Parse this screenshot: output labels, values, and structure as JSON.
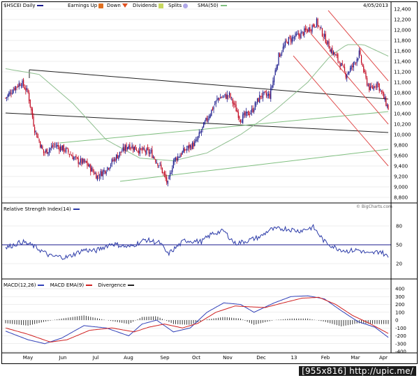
{
  "header": {
    "symbol_label": "$HSCEI Daily",
    "earnings_label": "Earnings Up",
    "down_label": "Down",
    "dividends_label": "Dividends",
    "splits_label": "Splits",
    "sma_label": "SMA(50)",
    "date": "4/05/2013"
  },
  "credit": "© BigCharts.com",
  "rsi_label": "Relative Strength Index(14)",
  "macd_labels": {
    "macd": "MACD(12,26)",
    "ema": "MACD EMA(9)",
    "div": "Divergence"
  },
  "months": [
    "May",
    "Jun",
    "Jul",
    "Aug",
    "Sep",
    "Oct",
    "Nov",
    "Dec",
    "13",
    "Feb",
    "Mar",
    "Apr"
  ],
  "stamp": "[955x816] http://upic.me/",
  "colors": {
    "up": "#1a1a8c",
    "down": "#c0001a",
    "sma": "#8fbf8f",
    "rsi": "#2b3aa8",
    "macd": "#3140b8",
    "ema": "#d02020",
    "channel_black": "#222222",
    "channel_green": "#7fbf7f",
    "channel_red": "#e05050"
  },
  "chart_data": [
    {
      "type": "candlestick",
      "title": "$HSCEI Daily",
      "ylim": [
        8800,
        12400
      ],
      "y_ticks": [
        12400,
        12200,
        12000,
        11800,
        11600,
        11400,
        11200,
        11000,
        10800,
        10600,
        10400,
        10200,
        10000,
        9800,
        9600,
        9400,
        9200,
        9000,
        8800
      ],
      "y_tick_labels": [
        "12,400",
        "12,200",
        "12,000",
        "11,800",
        "11,600",
        "11,400",
        "11,200",
        "11,000",
        "10,800",
        "10,600",
        "10,400",
        "10,200",
        "10,000",
        "9,800",
        "9,600",
        "9,400",
        "9,200",
        "9,000",
        "8,800"
      ],
      "x_labels": [
        "May",
        "Jun",
        "Jul",
        "Aug",
        "Sep",
        "Oct",
        "Nov",
        "Dec",
        "13",
        "Feb",
        "Mar",
        "Apr"
      ],
      "anchor_series": [
        [
          0,
          10700
        ],
        [
          8,
          10900
        ],
        [
          14,
          11000
        ],
        [
          20,
          10800
        ],
        [
          26,
          10100
        ],
        [
          34,
          9650
        ],
        [
          44,
          9800
        ],
        [
          54,
          9700
        ],
        [
          64,
          9500
        ],
        [
          72,
          9450
        ],
        [
          82,
          9200
        ],
        [
          90,
          9350
        ],
        [
          100,
          9600
        ],
        [
          110,
          9800
        ],
        [
          120,
          9700
        ],
        [
          130,
          9650
        ],
        [
          138,
          9400
        ],
        [
          145,
          9050
        ],
        [
          150,
          9500
        ],
        [
          160,
          9700
        ],
        [
          170,
          9850
        ],
        [
          180,
          10300
        ],
        [
          190,
          10700
        ],
        [
          200,
          10750
        ],
        [
          210,
          10300
        ],
        [
          220,
          10450
        ],
        [
          228,
          10750
        ],
        [
          236,
          10750
        ],
        [
          244,
          11500
        ],
        [
          252,
          11800
        ],
        [
          262,
          11900
        ],
        [
          270,
          12000
        ],
        [
          278,
          12150
        ],
        [
          284,
          11900
        ],
        [
          290,
          11650
        ],
        [
          298,
          11400
        ],
        [
          304,
          11150
        ],
        [
          310,
          11300
        ],
        [
          316,
          11550
        ],
        [
          322,
          11050
        ],
        [
          326,
          10850
        ],
        [
          332,
          11000
        ],
        [
          336,
          10800
        ],
        [
          342,
          10500
        ]
      ],
      "sma_50": [
        [
          0,
          11260
        ],
        [
          30,
          11150
        ],
        [
          60,
          10600
        ],
        [
          90,
          9900
        ],
        [
          120,
          9550
        ],
        [
          150,
          9500
        ],
        [
          180,
          9650
        ],
        [
          210,
          10000
        ],
        [
          240,
          10450
        ],
        [
          270,
          11000
        ],
        [
          290,
          11500
        ],
        [
          305,
          11720
        ],
        [
          320,
          11720
        ],
        [
          342,
          11500
        ]
      ]
    },
    {
      "type": "line",
      "title": "Relative Strength Index(14)",
      "ylim": [
        0,
        100
      ],
      "y_ticks": [
        80,
        50,
        20
      ],
      "reference_level": 50,
      "anchor_series": [
        [
          0,
          45
        ],
        [
          15,
          55
        ],
        [
          25,
          48
        ],
        [
          40,
          32
        ],
        [
          55,
          30
        ],
        [
          70,
          42
        ],
        [
          80,
          40
        ],
        [
          95,
          52
        ],
        [
          110,
          46
        ],
        [
          125,
          58
        ],
        [
          138,
          53
        ],
        [
          145,
          35
        ],
        [
          160,
          57
        ],
        [
          175,
          55
        ],
        [
          185,
          68
        ],
        [
          195,
          72
        ],
        [
          205,
          52
        ],
        [
          215,
          56
        ],
        [
          228,
          63
        ],
        [
          236,
          74
        ],
        [
          250,
          76
        ],
        [
          262,
          72
        ],
        [
          275,
          78
        ],
        [
          285,
          55
        ],
        [
          295,
          45
        ],
        [
          305,
          40
        ],
        [
          315,
          42
        ],
        [
          325,
          35
        ],
        [
          335,
          40
        ],
        [
          342,
          30
        ]
      ]
    },
    {
      "type": "line",
      "title": "MACD(12,26)",
      "ylim": [
        -400,
        400
      ],
      "y_ticks": [
        400,
        300,
        200,
        100,
        0,
        -100,
        -200,
        -300,
        -400
      ],
      "series": [
        {
          "name": "MACD(12,26)",
          "anchors": [
            [
              0,
              -140
            ],
            [
              20,
              -250
            ],
            [
              35,
              -300
            ],
            [
              50,
              -230
            ],
            [
              70,
              -70
            ],
            [
              90,
              -100
            ],
            [
              110,
              -200
            ],
            [
              122,
              -50
            ],
            [
              135,
              0
            ],
            [
              150,
              -150
            ],
            [
              165,
              -100
            ],
            [
              180,
              100
            ],
            [
              195,
              220
            ],
            [
              210,
              200
            ],
            [
              222,
              100
            ],
            [
              240,
              220
            ],
            [
              255,
              300
            ],
            [
              270,
              310
            ],
            [
              285,
              270
            ],
            [
              300,
              120
            ],
            [
              315,
              -20
            ],
            [
              330,
              -90
            ],
            [
              342,
              -220
            ]
          ]
        },
        {
          "name": "MACD EMA(9)",
          "anchors": [
            [
              0,
              -100
            ],
            [
              20,
              -180
            ],
            [
              40,
              -280
            ],
            [
              55,
              -250
            ],
            [
              75,
              -130
            ],
            [
              95,
              -100
            ],
            [
              115,
              -150
            ],
            [
              128,
              -90
            ],
            [
              142,
              -50
            ],
            [
              158,
              -100
            ],
            [
              172,
              -40
            ],
            [
              188,
              100
            ],
            [
              205,
              180
            ],
            [
              218,
              170
            ],
            [
              232,
              160
            ],
            [
              248,
              220
            ],
            [
              265,
              280
            ],
            [
              280,
              290
            ],
            [
              295,
              200
            ],
            [
              310,
              60
            ],
            [
              325,
              -40
            ],
            [
              342,
              -170
            ]
          ]
        },
        {
          "name": "Divergence",
          "anchors": [
            [
              0,
              -40
            ],
            [
              20,
              -70
            ],
            [
              35,
              -20
            ],
            [
              50,
              20
            ],
            [
              70,
              60
            ],
            [
              90,
              0
            ],
            [
              110,
              -50
            ],
            [
              122,
              40
            ],
            [
              135,
              50
            ],
            [
              150,
              -50
            ],
            [
              165,
              -60
            ],
            [
              180,
              10
            ],
            [
              195,
              40
            ],
            [
              210,
              20
            ],
            [
              222,
              -60
            ],
            [
              240,
              0
            ],
            [
              255,
              20
            ],
            [
              270,
              20
            ],
            [
              285,
              -20
            ],
            [
              300,
              -80
            ],
            [
              315,
              -40
            ],
            [
              330,
              -50
            ],
            [
              342,
              -50
            ]
          ]
        }
      ]
    }
  ]
}
